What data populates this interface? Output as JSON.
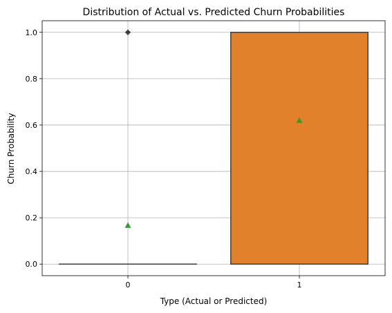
{
  "chart_data": {
    "type": "box",
    "title": "Distribution of Actual vs. Predicted Churn Probabilities",
    "xlabel": "Type (Actual or Predicted)",
    "ylabel": "Churn Probability",
    "categories": [
      "0",
      "1"
    ],
    "ylim": [
      -0.05,
      1.05
    ],
    "yticks": [
      0.0,
      0.2,
      0.4,
      0.6,
      0.8,
      1.0
    ],
    "ytick_labels": [
      "0.0",
      "0.2",
      "0.4",
      "0.6",
      "0.8",
      "1.0"
    ],
    "grid": true,
    "boxes": [
      {
        "category": "0",
        "q1": 0.0,
        "median": 0.0,
        "q3": 0.0,
        "whisker_low": 0.0,
        "whisker_high": 0.0,
        "mean": 0.167,
        "outliers": [
          1.0
        ],
        "color": "#1f77b4"
      },
      {
        "category": "1",
        "q1": 0.0,
        "median": 0.0,
        "q3": 1.0,
        "whisker_low": 0.0,
        "whisker_high": 1.0,
        "mean": 0.62,
        "outliers": [],
        "color": "#e1812c"
      }
    ],
    "mean_marker_color": "#2ca02c",
    "line_color": "#3f3f3f",
    "grid_color": "#b0b0b0"
  }
}
